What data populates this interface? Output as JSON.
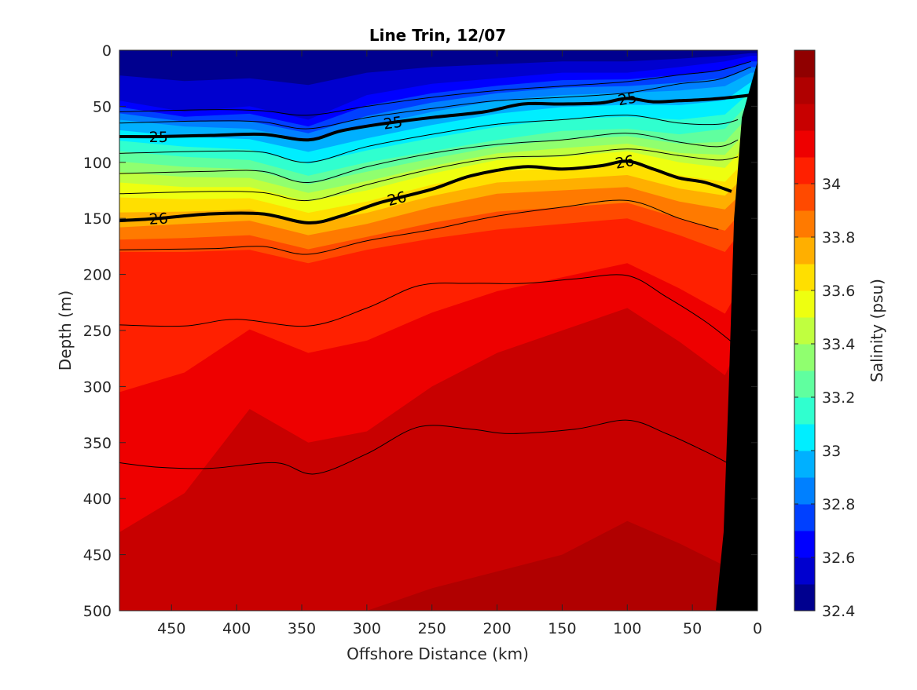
{
  "chart_data": {
    "type": "heatmap",
    "subtype": "filled-contour section",
    "title": "Line Trin, 12/07",
    "xlabel": "Offshore Distance (km)",
    "ylabel": "Depth (m)",
    "x_direction": "reversed",
    "xlim": [
      0,
      490
    ],
    "ylim": [
      0,
      500
    ],
    "y_direction": "reversed (depth increases downward)",
    "xticks": [
      "450",
      "400",
      "350",
      "300",
      "250",
      "200",
      "150",
      "100",
      "50",
      "0"
    ],
    "xtick_values": [
      450,
      400,
      350,
      300,
      250,
      200,
      150,
      100,
      50,
      0
    ],
    "yticks": [
      "0",
      "50",
      "100",
      "150",
      "200",
      "250",
      "300",
      "350",
      "400",
      "450",
      "500"
    ],
    "ytick_values": [
      0,
      50,
      100,
      150,
      200,
      250,
      300,
      350,
      400,
      450,
      500
    ],
    "colorbar": {
      "label": "Salinity (psu)",
      "range": [
        32.4,
        34.5
      ],
      "ticks": [
        "32.4",
        "32.6",
        "32.8",
        "33",
        "33.2",
        "33.4",
        "33.6",
        "33.8",
        "34"
      ],
      "tick_values": [
        32.4,
        32.6,
        32.8,
        33.0,
        33.2,
        33.4,
        33.6,
        33.8,
        34.0
      ],
      "levels": [
        32.4,
        32.5,
        32.6,
        32.7,
        32.8,
        32.9,
        33.0,
        33.1,
        33.2,
        33.3,
        33.4,
        33.5,
        33.6,
        33.7,
        33.8,
        33.9,
        34.0,
        34.1,
        34.2,
        34.3,
        34.4,
        34.5
      ],
      "colors": [
        "#00008f",
        "#0000cf",
        "#0000ff",
        "#0040ff",
        "#0080ff",
        "#00b0ff",
        "#00eeff",
        "#30ffcf",
        "#60ff9f",
        "#90ff6f",
        "#c0ff3f",
        "#eeff10",
        "#ffdf00",
        "#ffaf00",
        "#ff7a00",
        "#ff4a00",
        "#ff2000",
        "#ee0000",
        "#c80000",
        "#b00000",
        "#900000",
        "#800000"
      ]
    },
    "salinity_section": {
      "x_km": [
        490,
        440,
        390,
        345,
        300,
        250,
        200,
        150,
        100,
        60,
        25,
        5
      ],
      "depth_m": [
        0,
        20,
        40,
        60,
        80,
        100,
        120,
        140,
        160,
        180,
        200,
        240,
        280,
        320,
        360,
        400,
        440,
        480,
        500
      ],
      "interface_depths": {
        "s32_6": [
          45,
          55,
          50,
          62,
          40,
          30,
          25,
          20,
          20,
          15,
          10,
          5
        ],
        "s32_9": [
          62,
          68,
          70,
          80,
          68,
          55,
          45,
          40,
          38,
          36,
          32,
          20
        ],
        "s33_2": [
          90,
          95,
          98,
          112,
          100,
          90,
          80,
          72,
          70,
          75,
          70,
          45
        ],
        "s33_5": [
          118,
          122,
          122,
          135,
          125,
          110,
          98,
          95,
          90,
          100,
          105,
          80
        ],
        "s33_8": [
          158,
          155,
          152,
          165,
          155,
          140,
          128,
          125,
          122,
          135,
          142,
          120
        ],
        "s34_0": [
          180,
          180,
          178,
          190,
          178,
          168,
          160,
          155,
          150,
          165,
          180,
          150
        ],
        "s34_2": [
          430,
          395,
          320,
          350,
          340,
          300,
          270,
          250,
          230,
          260,
          290,
          240
        ],
        "s34_3": [
          505,
          505,
          505,
          505,
          500,
          480,
          465,
          450,
          420,
          440,
          460,
          430
        ]
      }
    },
    "density_contours": [
      {
        "label": "25",
        "emphasis": "bold",
        "x_km": [
          490,
          460,
          420,
          380,
          345,
          320,
          290,
          250,
          210,
          180,
          150,
          120,
          100,
          80,
          60,
          40,
          20,
          5
        ],
        "depth_m": [
          77,
          77,
          76,
          75,
          80,
          72,
          66,
          60,
          55,
          48,
          48,
          47,
          43,
          46,
          45,
          44,
          42,
          40
        ],
        "label_positions_km": [
          460,
          280,
          100
        ]
      },
      {
        "label": "26",
        "emphasis": "bold",
        "x_km": [
          490,
          460,
          420,
          380,
          345,
          320,
          290,
          250,
          220,
          180,
          150,
          120,
          100,
          80,
          60,
          40,
          20
        ],
        "depth_m": [
          152,
          150,
          146,
          146,
          154,
          148,
          136,
          124,
          112,
          104,
          106,
          103,
          99,
          106,
          114,
          118,
          126
        ],
        "label_positions_km": [
          460,
          277,
          102
        ]
      },
      {
        "label": "",
        "emphasis": "thin",
        "x_km": [
          490,
          420,
          380,
          345,
          300,
          250,
          200,
          150,
          100,
          60,
          30,
          5
        ],
        "depth_m": [
          55,
          53,
          54,
          58,
          50,
          42,
          36,
          32,
          28,
          22,
          18,
          10
        ]
      },
      {
        "label": "",
        "emphasis": "thin",
        "x_km": [
          490,
          420,
          380,
          345,
          300,
          250,
          200,
          150,
          100,
          60,
          30,
          5
        ],
        "depth_m": [
          65,
          63,
          64,
          70,
          60,
          52,
          45,
          42,
          38,
          30,
          26,
          15
        ]
      },
      {
        "label": "",
        "emphasis": "thin",
        "x_km": [
          490,
          420,
          380,
          345,
          300,
          250,
          200,
          150,
          100,
          60,
          30,
          15
        ],
        "depth_m": [
          92,
          90,
          91,
          100,
          86,
          75,
          66,
          62,
          58,
          65,
          66,
          62
        ]
      },
      {
        "label": "",
        "emphasis": "thin",
        "x_km": [
          490,
          420,
          380,
          345,
          300,
          250,
          200,
          150,
          100,
          60,
          30,
          15
        ],
        "depth_m": [
          110,
          108,
          108,
          118,
          104,
          92,
          84,
          80,
          74,
          82,
          86,
          80
        ]
      },
      {
        "label": "",
        "emphasis": "thin",
        "x_km": [
          490,
          420,
          380,
          345,
          300,
          250,
          200,
          150,
          100,
          60,
          30,
          15
        ],
        "depth_m": [
          128,
          126,
          127,
          134,
          120,
          106,
          96,
          94,
          88,
          94,
          98,
          95
        ]
      },
      {
        "label": "",
        "emphasis": "thin",
        "x_km": [
          490,
          420,
          380,
          345,
          300,
          250,
          200,
          150,
          100,
          60,
          30
        ],
        "depth_m": [
          178,
          177,
          175,
          182,
          170,
          160,
          148,
          140,
          134,
          150,
          160
        ]
      },
      {
        "label": "",
        "emphasis": "thin",
        "x_km": [
          490,
          440,
          400,
          345,
          300,
          260,
          220,
          180,
          140,
          100,
          70,
          40,
          20
        ],
        "depth_m": [
          245,
          246,
          240,
          246,
          230,
          210,
          208,
          208,
          204,
          201,
          220,
          242,
          260
        ]
      },
      {
        "label": "",
        "emphasis": "thin",
        "x_km": [
          490,
          460,
          420,
          370,
          340,
          300,
          260,
          220,
          190,
          140,
          100,
          70,
          40,
          20
        ],
        "depth_m": [
          368,
          372,
          373,
          368,
          378,
          360,
          336,
          338,
          342,
          338,
          330,
          342,
          358,
          370
        ]
      }
    ],
    "bathymetry": {
      "label_free": true,
      "color": "#000000",
      "x_km": [
        0,
        12,
        18,
        22,
        26,
        32
      ],
      "depth_m": [
        10,
        60,
        150,
        300,
        430,
        500
      ]
    }
  }
}
